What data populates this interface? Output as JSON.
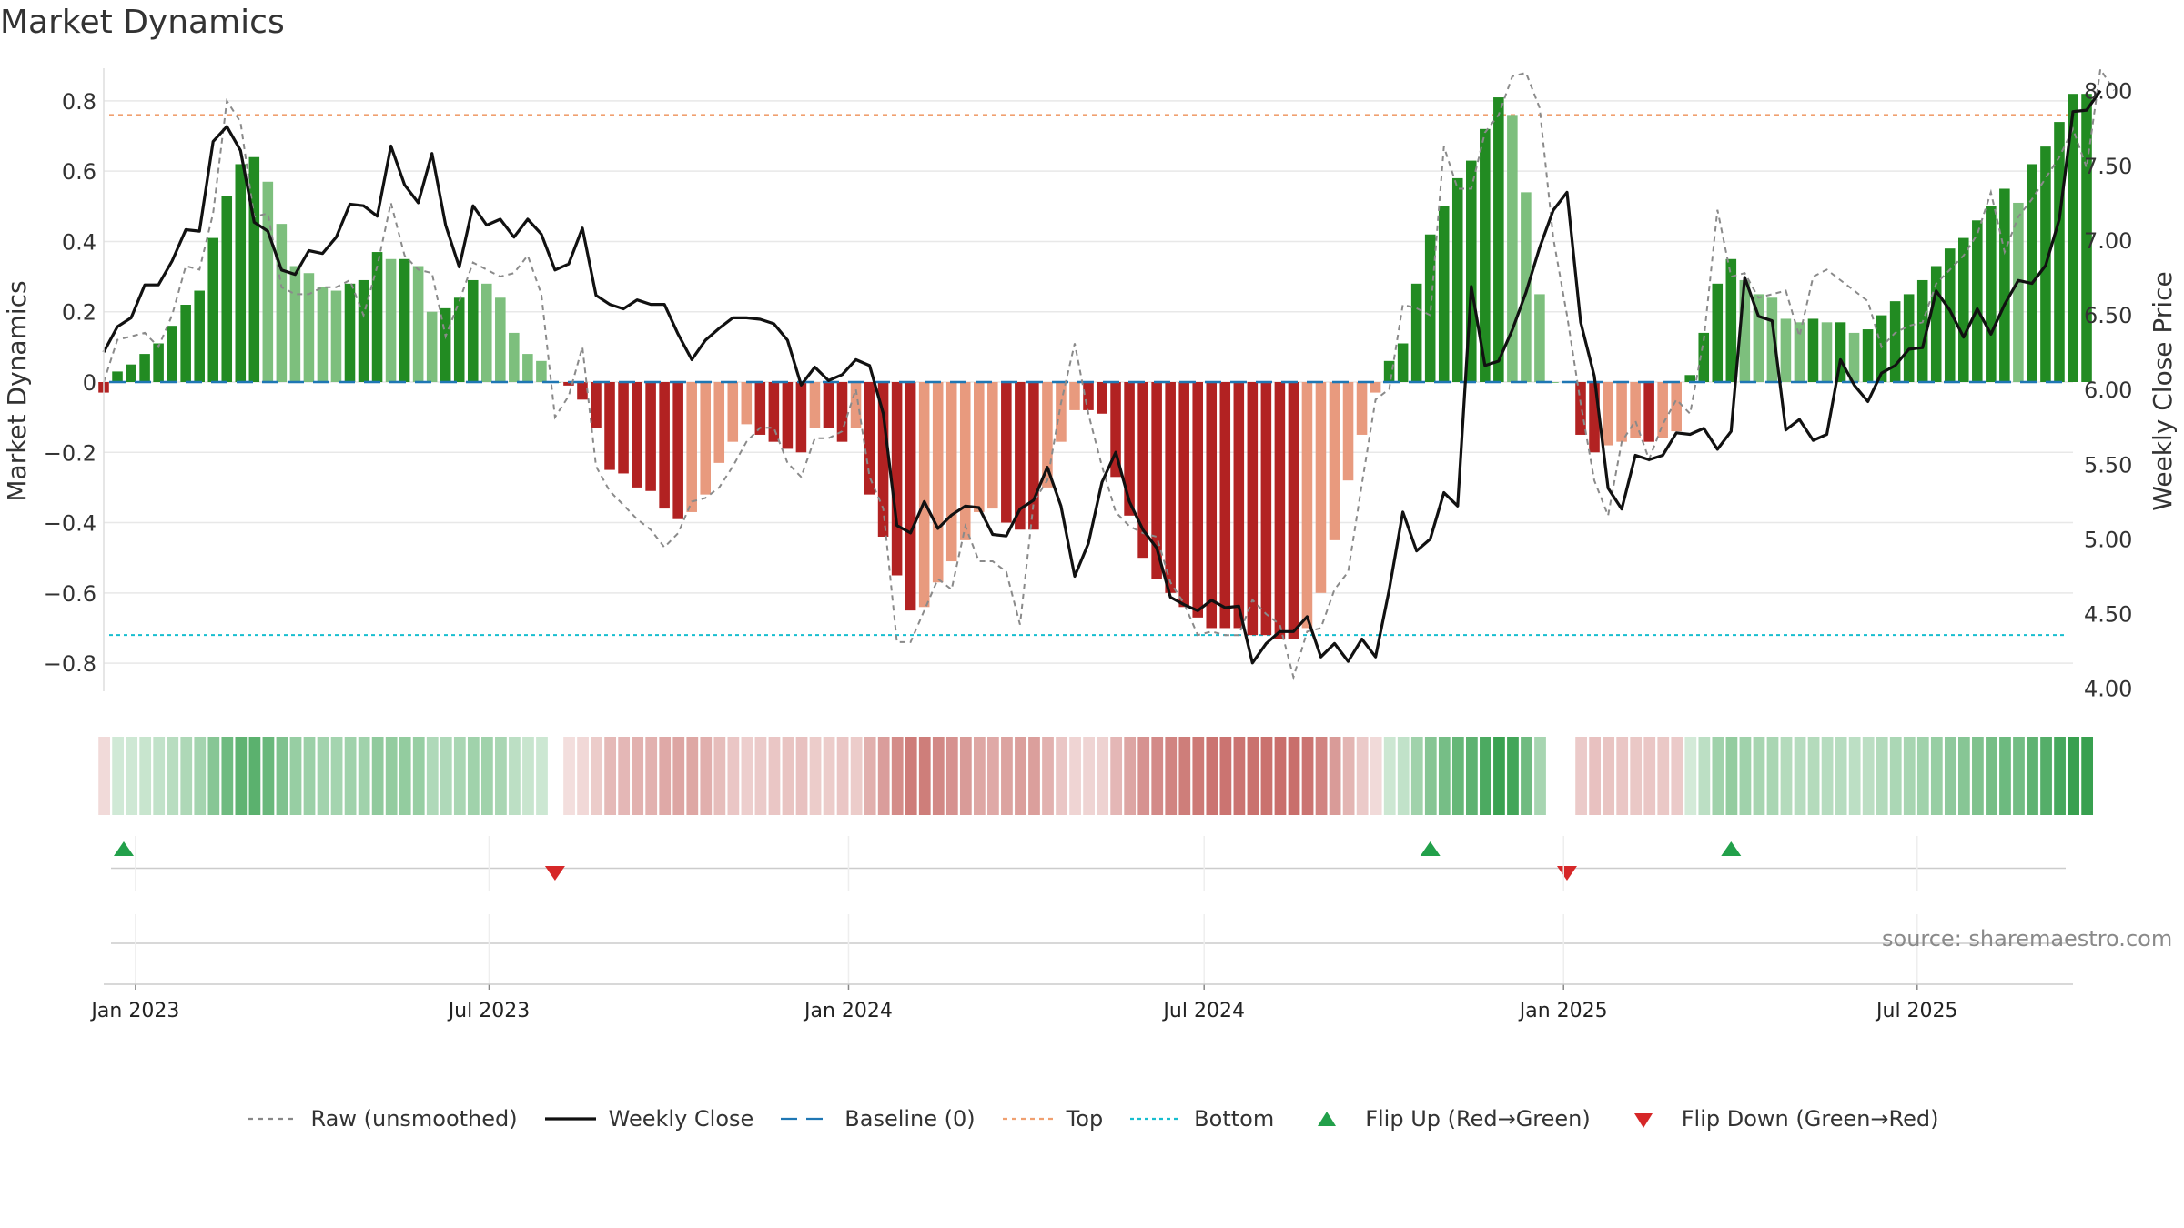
{
  "title": "Market Dynamics",
  "source": "source: sharemaestro.com",
  "legend": [
    {
      "key": "raw",
      "label": "Raw (unsmoothed)",
      "kind": "line",
      "color": "#888888",
      "dash": "6,5"
    },
    {
      "key": "close",
      "label": "Weekly Close",
      "kind": "line",
      "color": "#111111",
      "dash": ""
    },
    {
      "key": "baseline",
      "label": "Baseline (0)",
      "kind": "line",
      "color": "#1f77b4",
      "dash": "18,10"
    },
    {
      "key": "top",
      "label": "Top",
      "kind": "line",
      "color": "#f0a070",
      "dash": "5,5"
    },
    {
      "key": "bottom",
      "label": "Bottom",
      "kind": "line",
      "color": "#17becf",
      "dash": "4,4"
    },
    {
      "key": "flip_up",
      "label": "Flip Up (Red→Green)",
      "kind": "tri-up",
      "color": "#22a04a"
    },
    {
      "key": "flip_down",
      "label": "Flip Down (Green→Red)",
      "kind": "tri-down",
      "color": "#d62728"
    }
  ],
  "chart_data": {
    "type": "bar",
    "ylabel": "Market Dynamics",
    "y2label": "Weekly Close Price",
    "ylim": [
      -0.88,
      0.88
    ],
    "y2lim": [
      3.98,
      8.12
    ],
    "yticks": [
      -0.8,
      -0.6,
      -0.4,
      -0.2,
      0,
      0.2,
      0.4,
      0.6,
      0.8
    ],
    "ytick_labels": [
      "−0.8",
      "−0.6",
      "−0.4",
      "−0.2",
      "0",
      "0.2",
      "0.4",
      "0.6",
      "0.8"
    ],
    "y2ticks": [
      4.0,
      4.5,
      5.0,
      5.5,
      6.0,
      6.5,
      7.0,
      7.5,
      8.0
    ],
    "y2tick_labels": [
      "4.00",
      "4.50",
      "5.00",
      "5.50",
      "6.00",
      "6.50",
      "7.00",
      "7.50",
      "8.00"
    ],
    "top_line": 0.76,
    "bottom_line": -0.72,
    "baseline": 0,
    "x_start": "2022-12-26",
    "x_end": "2025-09-29",
    "xticks": [
      "2023-01-01",
      "2023-07-01",
      "2024-01-01",
      "2024-07-01",
      "2025-01-01",
      "2025-07-01"
    ],
    "xtick_labels": [
      "Jan 2023",
      "Jul 2023",
      "Jan 2024",
      "Jul 2024",
      "Jan 2025",
      "Jul 2025"
    ],
    "grid": true,
    "legend_position": "bottom",
    "dynamics": [
      -0.03,
      0.03,
      0.05,
      0.08,
      0.11,
      0.16,
      0.22,
      0.26,
      0.41,
      0.53,
      0.62,
      0.64,
      0.57,
      0.45,
      0.33,
      0.31,
      0.27,
      0.26,
      0.28,
      0.29,
      0.37,
      0.35,
      0.35,
      0.33,
      0.2,
      0.21,
      0.24,
      0.29,
      0.28,
      0.24,
      0.14,
      0.08,
      0.06,
      0.0,
      -0.01,
      -0.05,
      -0.13,
      -0.25,
      -0.26,
      -0.3,
      -0.31,
      -0.36,
      -0.39,
      -0.37,
      -0.32,
      -0.23,
      -0.17,
      -0.12,
      -0.15,
      -0.17,
      -0.19,
      -0.2,
      -0.13,
      -0.13,
      -0.17,
      -0.13,
      -0.32,
      -0.44,
      -0.55,
      -0.65,
      -0.64,
      -0.57,
      -0.51,
      -0.45,
      -0.37,
      -0.36,
      -0.4,
      -0.42,
      -0.42,
      -0.3,
      -0.17,
      -0.08,
      -0.08,
      -0.09,
      -0.27,
      -0.38,
      -0.5,
      -0.56,
      -0.6,
      -0.64,
      -0.67,
      -0.7,
      -0.7,
      -0.7,
      -0.72,
      -0.72,
      -0.73,
      -0.73,
      -0.7,
      -0.6,
      -0.45,
      -0.28,
      -0.15,
      -0.03,
      0.06,
      0.11,
      0.28,
      0.42,
      0.5,
      0.58,
      0.63,
      0.72,
      0.81,
      0.76,
      0.54,
      0.25,
      0.0,
      0.0,
      -0.15,
      -0.2,
      -0.18,
      -0.17,
      -0.16,
      -0.17,
      -0.16,
      -0.14,
      0.02,
      0.14,
      0.28,
      0.35,
      0.29,
      0.25,
      0.24,
      0.18,
      0.17,
      0.18,
      0.17,
      0.17,
      0.14,
      0.15,
      0.19,
      0.23,
      0.25,
      0.29,
      0.33,
      0.38,
      0.41,
      0.46,
      0.5,
      0.55,
      0.51,
      0.62,
      0.67,
      0.74,
      0.82,
      0.82
    ],
    "close": [
      6.25,
      6.42,
      6.48,
      6.7,
      6.7,
      6.86,
      7.07,
      7.06,
      7.66,
      7.76,
      7.6,
      7.12,
      7.06,
      6.8,
      6.77,
      6.93,
      6.91,
      7.02,
      7.24,
      7.23,
      7.16,
      7.63,
      7.37,
      7.25,
      7.58,
      7.1,
      6.82,
      7.23,
      7.1,
      7.14,
      7.02,
      7.14,
      7.04,
      6.8,
      6.84,
      7.08,
      6.63,
      6.57,
      6.54,
      6.6,
      6.57,
      6.57,
      6.37,
      6.2,
      6.33,
      6.41,
      6.48,
      6.48,
      6.47,
      6.44,
      6.33,
      6.03,
      6.15,
      6.06,
      6.1,
      6.2,
      6.16,
      5.84,
      5.09,
      5.04,
      5.25,
      5.07,
      5.16,
      5.22,
      5.21,
      5.03,
      5.02,
      5.2,
      5.26,
      5.48,
      5.22,
      4.75,
      4.97,
      5.38,
      5.58,
      5.25,
      5.06,
      4.94,
      4.61,
      4.56,
      4.52,
      4.59,
      4.54,
      4.55,
      4.17,
      4.3,
      4.38,
      4.38,
      4.48,
      4.21,
      4.3,
      4.18,
      4.33,
      4.21,
      4.66,
      5.18,
      4.92,
      5.0,
      5.31,
      5.22,
      6.69,
      6.16,
      6.19,
      6.4,
      6.65,
      6.95,
      7.2,
      7.32,
      6.45,
      6.09,
      5.34,
      5.2,
      5.56,
      5.53,
      5.56,
      5.71,
      5.7,
      5.74,
      5.6,
      5.72,
      6.75,
      6.49,
      6.46,
      5.73,
      5.8,
      5.66,
      5.7,
      6.2,
      6.03,
      5.92,
      6.11,
      6.16,
      6.27,
      6.28,
      6.66,
      6.53,
      6.35,
      6.54,
      6.37,
      6.57,
      6.73,
      6.71,
      6.83,
      7.14,
      7.86,
      7.87,
      8.0
    ],
    "raw": [
      0.0,
      0.12,
      0.13,
      0.14,
      0.1,
      0.19,
      0.33,
      0.32,
      0.48,
      0.8,
      0.74,
      0.47,
      0.48,
      0.27,
      0.25,
      0.25,
      0.27,
      0.27,
      0.29,
      0.19,
      0.33,
      0.51,
      0.36,
      0.32,
      0.31,
      0.13,
      0.23,
      0.34,
      0.32,
      0.3,
      0.31,
      0.36,
      0.25,
      -0.1,
      -0.04,
      0.1,
      -0.24,
      -0.31,
      -0.35,
      -0.39,
      -0.42,
      -0.47,
      -0.43,
      -0.34,
      -0.33,
      -0.3,
      -0.24,
      -0.17,
      -0.13,
      -0.13,
      -0.23,
      -0.27,
      -0.16,
      -0.16,
      -0.14,
      -0.02,
      -0.27,
      -0.36,
      -0.74,
      -0.74,
      -0.65,
      -0.56,
      -0.59,
      -0.41,
      -0.51,
      -0.51,
      -0.54,
      -0.69,
      -0.34,
      -0.28,
      -0.06,
      0.11,
      -0.09,
      -0.24,
      -0.37,
      -0.41,
      -0.43,
      -0.44,
      -0.57,
      -0.63,
      -0.72,
      -0.71,
      -0.72,
      -0.72,
      -0.62,
      -0.66,
      -0.69,
      -0.84,
      -0.71,
      -0.7,
      -0.59,
      -0.54,
      -0.29,
      -0.05,
      -0.02,
      0.22,
      0.21,
      0.19,
      0.67,
      0.55,
      0.55,
      0.71,
      0.76,
      0.87,
      0.88,
      0.78,
      0.41,
      0.19,
      -0.06,
      -0.28,
      -0.38,
      -0.17,
      -0.11,
      -0.22,
      -0.12,
      -0.05,
      -0.09,
      0.12,
      0.49,
      0.3,
      0.31,
      0.24,
      0.25,
      0.26,
      0.13,
      0.3,
      0.32,
      0.29,
      0.26,
      0.23,
      0.1,
      0.14,
      0.16,
      0.17,
      0.28,
      0.32,
      0.36,
      0.42,
      0.54,
      0.37,
      0.47,
      0.52,
      0.58,
      0.64,
      0.72,
      0.61,
      0.89,
      0.83
    ],
    "flip_up": [
      "2022-12-26",
      "2024-11-04",
      "2025-04-07"
    ],
    "flip_down": [
      "2023-08-14",
      "2025-01-13"
    ]
  }
}
